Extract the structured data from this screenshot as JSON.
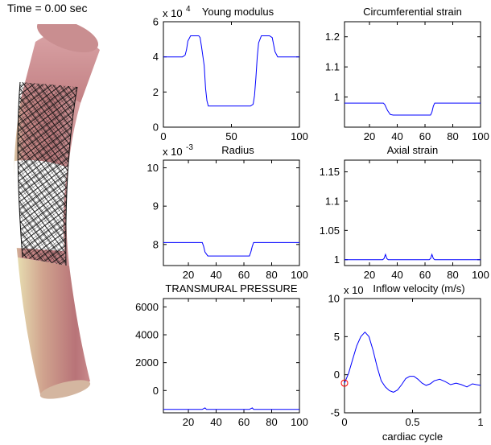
{
  "figure": {
    "time_label": "Time = 0.00 sec"
  },
  "chart_data": [
    {
      "type": "line",
      "title": "Young modulus",
      "exponent_label": "x 10",
      "exponent_power": "4",
      "xlim": [
        0,
        100
      ],
      "ylim": [
        0,
        6
      ],
      "xticks": [
        "0",
        "50",
        "100"
      ],
      "yticks": [
        "0",
        "2",
        "4",
        "6"
      ],
      "x": [
        0,
        14,
        16,
        17,
        18,
        20,
        26,
        27,
        28,
        30,
        31,
        32,
        33,
        36,
        60,
        64,
        66,
        67,
        68,
        69,
        70,
        72,
        78,
        80,
        81,
        82,
        84,
        100
      ],
      "values": [
        4,
        4,
        4.1,
        4.4,
        4.9,
        5.2,
        5.2,
        5.1,
        4.6,
        3.5,
        2.2,
        1.5,
        1.2,
        1.2,
        1.2,
        1.2,
        1.3,
        1.8,
        2.8,
        4.0,
        4.8,
        5.2,
        5.2,
        5.1,
        4.7,
        4.3,
        4.0,
        4
      ]
    },
    {
      "type": "line",
      "title": "Circumferential strain",
      "xlim": [
        2,
        100
      ],
      "ylim": [
        0.9,
        1.25
      ],
      "xticks": [
        "20",
        "40",
        "60",
        "80",
        "100"
      ],
      "yticks": [
        "1",
        "1.1",
        "1.2"
      ],
      "x": [
        2,
        30,
        31,
        33,
        35,
        37,
        60,
        64,
        65,
        66,
        67,
        100
      ],
      "values": [
        0.98,
        0.98,
        0.975,
        0.955,
        0.942,
        0.94,
        0.94,
        0.94,
        0.95,
        0.97,
        0.98,
        0.98
      ]
    },
    {
      "type": "line",
      "title": "Radius",
      "exponent_label": "x 10",
      "exponent_power": "-3",
      "xlim": [
        2,
        100
      ],
      "ylim": [
        7.45,
        10.2
      ],
      "xticks": [
        "20",
        "40",
        "60",
        "80",
        "100"
      ],
      "yticks": [
        "8",
        "9",
        "10"
      ],
      "x": [
        2,
        30,
        31,
        32,
        34,
        60,
        64,
        65,
        66,
        67,
        100
      ],
      "values": [
        8.05,
        8.05,
        7.95,
        7.8,
        7.7,
        7.7,
        7.7,
        7.8,
        7.95,
        8.05,
        8.05
      ]
    },
    {
      "type": "line",
      "title": "Axial strain",
      "xlim": [
        2,
        100
      ],
      "ylim": [
        0.99,
        1.17
      ],
      "xticks": [
        "20",
        "40",
        "60",
        "80",
        "100"
      ],
      "yticks": [
        "1",
        "1.05",
        "1.1",
        "1.15"
      ],
      "x": [
        2,
        29.5,
        30.5,
        31.5,
        32.5,
        33.5,
        63,
        64,
        65,
        66,
        67,
        100
      ],
      "values": [
        1,
        1,
        1.002,
        1.009,
        1.002,
        1,
        1,
        1.002,
        1.009,
        1.002,
        1,
        1
      ]
    },
    {
      "type": "line",
      "title": "TRANSMURAL PRESSURE",
      "xlim": [
        2,
        100
      ],
      "ylim": [
        -1600,
        6600
      ],
      "xticks": [
        "20",
        "40",
        "60",
        "80",
        "100"
      ],
      "yticks": [
        "0",
        "2000",
        "4000",
        "6000"
      ],
      "x": [
        2,
        30,
        31,
        32,
        33,
        64,
        65,
        66,
        67,
        100
      ],
      "values": [
        -1350,
        -1350,
        -1300,
        -1250,
        -1350,
        -1350,
        -1300,
        -1250,
        -1350,
        -1350
      ]
    },
    {
      "type": "line",
      "title": "Inflow velocity (m/s)",
      "exponent_label": "x 10",
      "xlabel": "cardiac cycle",
      "xlim": [
        0,
        1
      ],
      "ylim": [
        -5,
        10
      ],
      "xticks": [
        "0",
        "0.5",
        "1"
      ],
      "yticks": [
        "-5",
        "0",
        "5",
        "10"
      ],
      "marker_point": {
        "x": 0,
        "y": -1.1
      },
      "x": [
        0,
        0.03,
        0.06,
        0.09,
        0.12,
        0.15,
        0.18,
        0.21,
        0.24,
        0.27,
        0.3,
        0.33,
        0.36,
        0.39,
        0.42,
        0.45,
        0.48,
        0.51,
        0.54,
        0.57,
        0.6,
        0.63,
        0.66,
        0.7,
        0.74,
        0.78,
        0.82,
        0.86,
        0.9,
        0.94,
        0.97,
        1.0
      ],
      "values": [
        -1.1,
        0.2,
        2.0,
        3.8,
        5.0,
        5.6,
        5.0,
        3.2,
        1.0,
        -0.8,
        -1.6,
        -2.1,
        -2.3,
        -2.0,
        -1.3,
        -0.5,
        -0.2,
        -0.2,
        -0.6,
        -1.1,
        -1.4,
        -1.2,
        -0.8,
        -0.6,
        -0.9,
        -1.3,
        -1.1,
        -1.3,
        -1.6,
        -1.2,
        -1.3,
        -1.4
      ]
    }
  ]
}
